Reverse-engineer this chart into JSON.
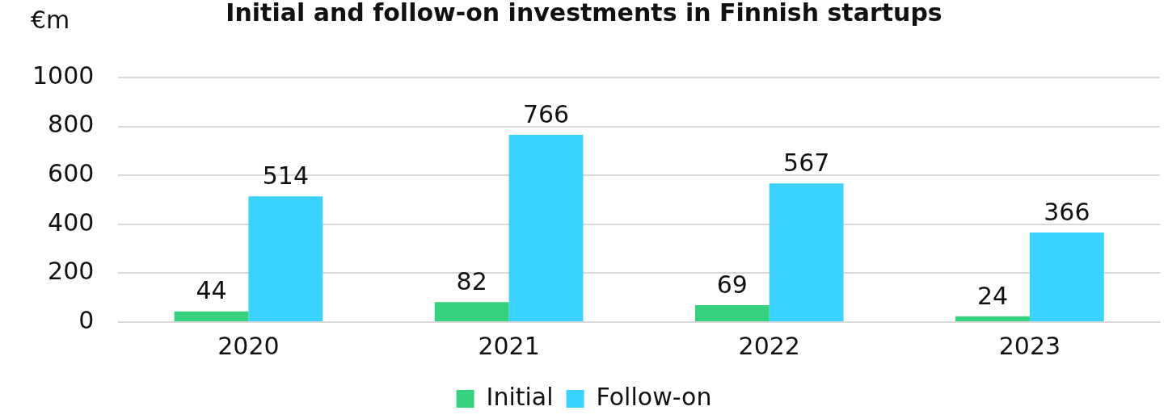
{
  "chart_data": {
    "type": "bar",
    "title": "Initial and follow-on investments in Finnish startups",
    "ylabel": "€m",
    "categories": [
      "2020",
      "2021",
      "2022",
      "2023"
    ],
    "series": [
      {
        "name": "Initial",
        "color": "#34d27e",
        "values": [
          44,
          82,
          69,
          24
        ]
      },
      {
        "name": "Follow-on",
        "color": "#3ad2ff",
        "values": [
          514,
          766,
          567,
          366
        ]
      }
    ],
    "ylim": [
      0,
      1000
    ],
    "yticks": [
      0,
      200,
      400,
      600,
      800,
      1000
    ],
    "grid": "y",
    "legend": "bottom",
    "data_labels": true
  }
}
